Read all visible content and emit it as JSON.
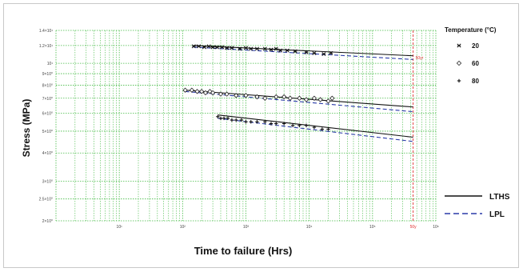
{
  "chart_data": {
    "type": "line",
    "xlabel": "Time to failure (Hrs)",
    "ylabel": "Stress (MPa)",
    "xscale": "log",
    "yscale": "log",
    "xlim": [
      1,
      1000000
    ],
    "ylim": [
      2.0,
      14.0
    ],
    "grid": true,
    "grid_color": "#44bb44",
    "x_tick_labels": [
      "10¹",
      "10²",
      "10³",
      "10⁴",
      "10⁵",
      "10⁶"
    ],
    "x_tick_values": [
      10,
      100,
      1000,
      10000,
      100000,
      1000000
    ],
    "y_tick_labels": [
      "1.4×10¹",
      "1.2×10¹",
      "10¹",
      "9×10⁰",
      "8×10⁰",
      "7×10⁰",
      "6×10⁰",
      "5×10⁰",
      "4×10⁰",
      "3×10⁰",
      "2.5×10⁰",
      "2×10⁰"
    ],
    "y_tick_values": [
      14,
      12,
      10,
      9,
      8,
      7,
      6,
      5,
      4,
      3,
      2.5,
      2
    ],
    "vertical_marker": {
      "x": 438000,
      "label": "50y",
      "top_label": "50yr",
      "color": "#e03030"
    },
    "legend": {
      "title": "Temperature (°C)",
      "placement": "top-right",
      "entries": [
        {
          "label": "20",
          "marker": "x"
        },
        {
          "label": "60",
          "marker": "diamond-open"
        },
        {
          "label": "80",
          "marker": "plus"
        }
      ]
    },
    "line_legend": {
      "placement": "bottom-right",
      "entries": [
        {
          "label": "LTHS",
          "style": "solid",
          "color": "#111111"
        },
        {
          "label": "LPL",
          "style": "dashed",
          "color": "#2a3aa8"
        }
      ]
    },
    "series": [
      {
        "temperature": "20",
        "marker": "x",
        "points": [
          [
            150,
            11.9
          ],
          [
            180,
            11.9
          ],
          [
            220,
            11.8
          ],
          [
            260,
            11.9
          ],
          [
            300,
            11.8
          ],
          [
            350,
            11.8
          ],
          [
            420,
            11.8
          ],
          [
            500,
            11.7
          ],
          [
            600,
            11.7
          ],
          [
            800,
            11.6
          ],
          [
            1000,
            11.7
          ],
          [
            1200,
            11.6
          ],
          [
            1500,
            11.6
          ],
          [
            2000,
            11.6
          ],
          [
            2500,
            11.5
          ],
          [
            3000,
            11.6
          ],
          [
            3500,
            11.4
          ],
          [
            4500,
            11.4
          ],
          [
            6000,
            11.3
          ],
          [
            9000,
            11.2
          ],
          [
            12000,
            11.1
          ],
          [
            17000,
            11.0
          ],
          [
            22000,
            11.1
          ]
        ],
        "lths": [
          [
            150,
            12.0
          ],
          [
            438000,
            10.8
          ]
        ],
        "lpl": [
          [
            150,
            11.8
          ],
          [
            438000,
            10.4
          ]
        ]
      },
      {
        "temperature": "60",
        "marker": "diamond-open",
        "points": [
          [
            110,
            7.6
          ],
          [
            140,
            7.6
          ],
          [
            170,
            7.5
          ],
          [
            200,
            7.5
          ],
          [
            230,
            7.4
          ],
          [
            270,
            7.5
          ],
          [
            300,
            7.4
          ],
          [
            400,
            7.3
          ],
          [
            500,
            7.3
          ],
          [
            700,
            7.2
          ],
          [
            1000,
            7.2
          ],
          [
            1500,
            7.1
          ],
          [
            2000,
            7.0
          ],
          [
            3000,
            7.1
          ],
          [
            4000,
            7.1
          ],
          [
            5000,
            7.0
          ],
          [
            7000,
            7.0
          ],
          [
            9000,
            6.9
          ],
          [
            12000,
            7.0
          ],
          [
            15000,
            6.9
          ],
          [
            20000,
            6.8
          ],
          [
            23000,
            7.0
          ]
        ],
        "lths": [
          [
            110,
            7.6
          ],
          [
            438000,
            6.4
          ]
        ],
        "lpl": [
          [
            110,
            7.5
          ],
          [
            438000,
            6.1
          ]
        ]
      },
      {
        "temperature": "80",
        "marker": "plus",
        "points": [
          [
            360,
            5.8
          ],
          [
            400,
            5.7
          ],
          [
            450,
            5.7
          ],
          [
            520,
            5.7
          ],
          [
            600,
            5.6
          ],
          [
            700,
            5.6
          ],
          [
            850,
            5.6
          ],
          [
            1000,
            5.5
          ],
          [
            1200,
            5.5
          ],
          [
            1500,
            5.5
          ],
          [
            2000,
            5.5
          ],
          [
            2500,
            5.4
          ],
          [
            3000,
            5.4
          ],
          [
            4000,
            5.4
          ],
          [
            5500,
            5.3
          ],
          [
            7000,
            5.3
          ],
          [
            9000,
            5.3
          ],
          [
            12000,
            5.2
          ],
          [
            16000,
            5.1
          ],
          [
            20000,
            5.1
          ]
        ],
        "lths": [
          [
            360,
            5.9
          ],
          [
            438000,
            4.7
          ]
        ],
        "lpl": [
          [
            360,
            5.7
          ],
          [
            438000,
            4.5
          ]
        ]
      }
    ]
  }
}
